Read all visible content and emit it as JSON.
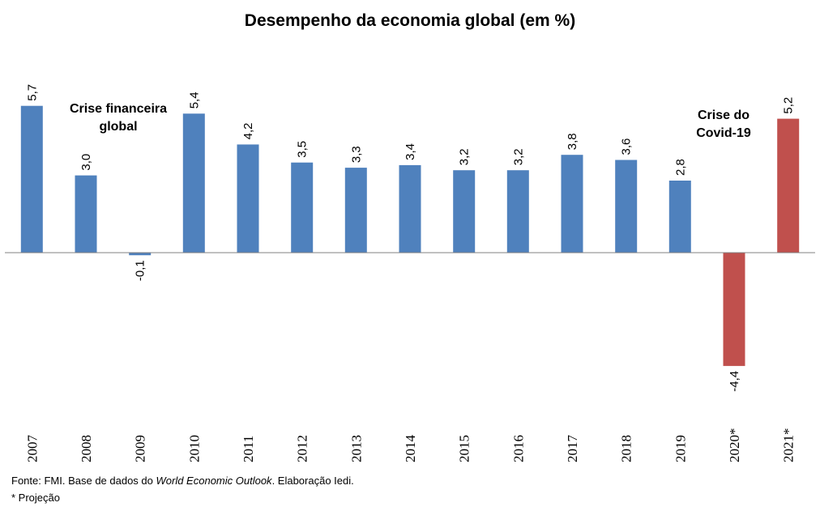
{
  "chart_data": {
    "type": "bar",
    "title": "Desempenho da economia global (em %)",
    "categories": [
      "2007",
      "2008",
      "2009",
      "2010",
      "2011",
      "2012",
      "2013",
      "2014",
      "2015",
      "2016",
      "2017",
      "2018",
      "2019",
      "2020*",
      "2021*"
    ],
    "values": [
      5.7,
      3.0,
      -0.1,
      5.4,
      4.2,
      3.5,
      3.3,
      3.4,
      3.2,
      3.2,
      3.8,
      3.6,
      2.8,
      -4.4,
      5.2
    ],
    "data_labels": [
      "5,7",
      "3,0",
      "-0,1",
      "5,4",
      "4,2",
      "3,5",
      "3,3",
      "3,4",
      "3,2",
      "3,2",
      "3,8",
      "3,6",
      "2,8",
      "-4,4",
      "5,2"
    ],
    "projection_categories": [
      "2020*",
      "2021*"
    ],
    "colors": {
      "historical": "#4F81BD",
      "projection": "#C0504D"
    },
    "annotations": [
      {
        "lines": [
          "Crise financeira",
          "global"
        ],
        "near_category": "2008"
      },
      {
        "lines": [
          "Crise do",
          "Covid-19"
        ],
        "near_category": "2020*"
      }
    ],
    "grid": false,
    "legend": "none"
  },
  "footer": {
    "source_prefix": "Fonte: FMI.  Base de dados do ",
    "source_italic": "World Economic Outlook",
    "source_suffix": ".  Elaboração Iedi.",
    "note": "* Projeção"
  }
}
